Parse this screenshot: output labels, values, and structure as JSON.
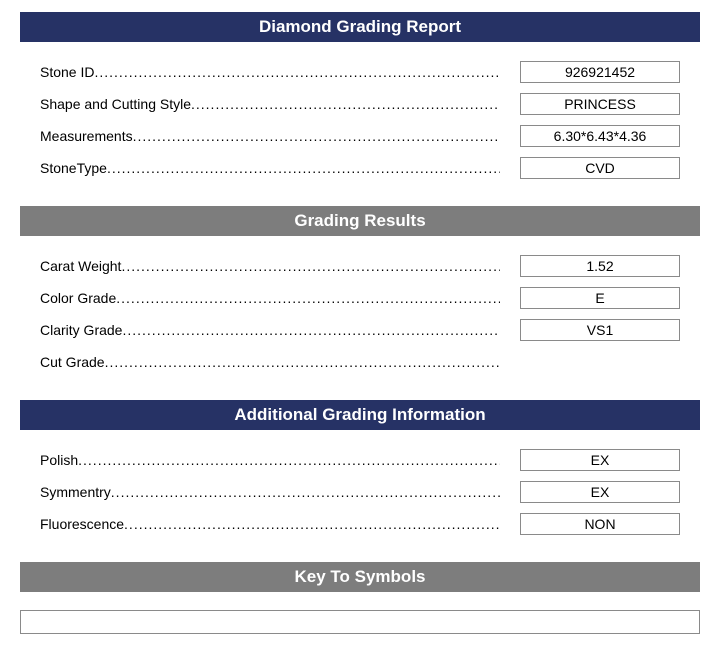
{
  "colors": {
    "primary_header_bg": "#263265",
    "secondary_header_bg": "#7d7d7d",
    "header_text": "#ffffff",
    "body_text": "#000000",
    "box_border": "#8a8a8a",
    "page_bg": "#ffffff"
  },
  "sections": {
    "main": {
      "title": "Diamond Grading Report",
      "rows": [
        {
          "label": "Stone ID",
          "value": "926921452"
        },
        {
          "label": "Shape and Cutting Style",
          "value": "PRINCESS"
        },
        {
          "label": "Measurements",
          "value": "6.30*6.43*4.36"
        },
        {
          "label": "StoneType",
          "value": "CVD"
        }
      ]
    },
    "grading": {
      "title": "Grading Results",
      "rows": [
        {
          "label": "Carat Weight",
          "value": "1.52"
        },
        {
          "label": "Color Grade",
          "value": "E"
        },
        {
          "label": "Clarity Grade",
          "value": "VS1"
        },
        {
          "label": "Cut Grade",
          "value": ""
        }
      ]
    },
    "additional": {
      "title": "Additional Grading Information",
      "rows": [
        {
          "label": "Polish",
          "value": "EX"
        },
        {
          "label": "Symmentry",
          "value": "EX"
        },
        {
          "label": "Fluorescence",
          "value": "NON"
        }
      ]
    },
    "symbols": {
      "title": "Key To Symbols",
      "content": ""
    }
  }
}
